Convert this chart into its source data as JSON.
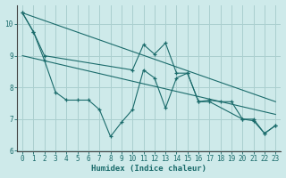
{
  "background_color": "#ceeaea",
  "grid_color": "#aacfcf",
  "line_color": "#1a6b6b",
  "xlabel": "Humidex (Indice chaleur)",
  "xlim": [
    -0.5,
    23.5
  ],
  "ylim": [
    6,
    10.6
  ],
  "yticks": [
    6,
    7,
    8,
    9,
    10
  ],
  "xticks": [
    0,
    1,
    2,
    3,
    4,
    5,
    6,
    7,
    8,
    9,
    10,
    11,
    12,
    13,
    14,
    15,
    16,
    17,
    18,
    19,
    20,
    21,
    22,
    23
  ],
  "series1_x": [
    0,
    1,
    2,
    10,
    11,
    12,
    13,
    14,
    15,
    16,
    17,
    20,
    21,
    22,
    23
  ],
  "series1_y": [
    10.35,
    9.75,
    9.0,
    8.55,
    9.35,
    9.05,
    9.4,
    8.45,
    8.45,
    7.55,
    7.55,
    7.0,
    6.95,
    6.55,
    6.8
  ],
  "series2_x": [
    0,
    1,
    2,
    3,
    4,
    5,
    6,
    7,
    8,
    9,
    10,
    11,
    12,
    13,
    14,
    15,
    16,
    17,
    18,
    19,
    20,
    21,
    22,
    23
  ],
  "series2_y": [
    10.35,
    9.75,
    8.85,
    7.85,
    7.6,
    7.6,
    7.6,
    7.3,
    6.45,
    6.9,
    7.3,
    8.55,
    8.3,
    7.35,
    8.3,
    8.45,
    7.55,
    7.6,
    7.55,
    7.55,
    7.0,
    7.0,
    6.55,
    6.8
  ],
  "trend1_x": [
    0,
    23
  ],
  "trend1_y": [
    10.35,
    7.55
  ],
  "trend2_x": [
    0,
    23
  ],
  "trend2_y": [
    9.0,
    7.15
  ]
}
